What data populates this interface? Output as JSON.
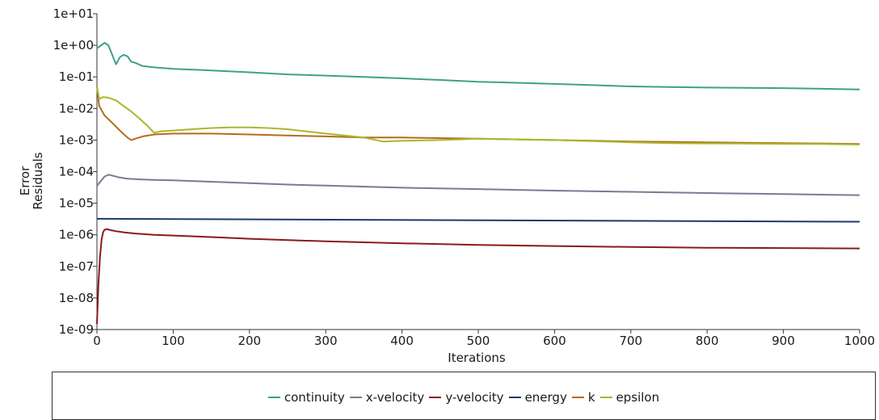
{
  "chart_data": {
    "type": "line",
    "title": "",
    "xlabel": "Iterations",
    "ylabel_lines": [
      "Error",
      "Residuals"
    ],
    "xlim": [
      0,
      1000
    ],
    "ylim": [
      1e-09,
      10
    ],
    "yscale": "log",
    "grid": false,
    "legend_position": "bottom",
    "x_ticks": [
      0,
      100,
      200,
      300,
      400,
      500,
      600,
      700,
      800,
      900,
      1000
    ],
    "x_tick_labels": [
      "0",
      "100",
      "200",
      "300",
      "400",
      "500",
      "600",
      "700",
      "800",
      "900",
      "1000"
    ],
    "y_tick_labels": [
      "1e+01",
      "1e+00",
      "1e-01",
      "1e-02",
      "1e-03",
      "1e-04",
      "1e-05",
      "1e-06",
      "1e-07",
      "1e-08",
      "1e-09"
    ],
    "series": [
      {
        "name": "continuity",
        "color": "#3fa08c",
        "x": [
          0,
          10,
          15,
          20,
          25,
          30,
          35,
          40,
          45,
          50,
          60,
          75,
          100,
          150,
          200,
          250,
          300,
          350,
          400,
          450,
          500,
          550,
          600,
          650,
          700,
          750,
          800,
          850,
          900,
          950,
          1000
        ],
        "y": [
          0.8,
          1.2,
          1.0,
          0.5,
          0.25,
          0.42,
          0.5,
          0.45,
          0.3,
          0.28,
          0.22,
          0.2,
          0.18,
          0.16,
          0.14,
          0.12,
          0.11,
          0.1,
          0.09,
          0.08,
          0.07,
          0.065,
          0.06,
          0.055,
          0.05,
          0.048,
          0.046,
          0.045,
          0.044,
          0.042,
          0.04
        ]
      },
      {
        "name": "x-velocity",
        "color": "#7a7a92",
        "x": [
          0,
          5,
          10,
          15,
          20,
          30,
          40,
          50,
          60,
          75,
          100,
          150,
          200,
          250,
          300,
          400,
          500,
          600,
          700,
          800,
          900,
          1000
        ],
        "y": [
          3.5e-05,
          5e-05,
          7e-05,
          8e-05,
          7.5e-05,
          6.5e-05,
          6e-05,
          5.8e-05,
          5.6e-05,
          5.5e-05,
          5.3e-05,
          4.8e-05,
          4.3e-05,
          3.9e-05,
          3.6e-05,
          3.1e-05,
          2.8e-05,
          2.5e-05,
          2.3e-05,
          2.1e-05,
          1.95e-05,
          1.8e-05
        ]
      },
      {
        "name": "y-velocity",
        "color": "#8b1a1a",
        "x": [
          0,
          2,
          4,
          6,
          8,
          10,
          14,
          18,
          25,
          35,
          50,
          75,
          100,
          150,
          200,
          300,
          400,
          500,
          600,
          700,
          800,
          900,
          1000
        ],
        "y": [
          1.5e-09,
          3e-08,
          2e-07,
          7e-07,
          1.2e-06,
          1.45e-06,
          1.5e-06,
          1.4e-06,
          1.3e-06,
          1.2e-06,
          1.1e-06,
          1e-06,
          9.5e-07,
          8.5e-07,
          7.5e-07,
          6.2e-07,
          5.4e-07,
          4.8e-07,
          4.4e-07,
          4.1e-07,
          3.9e-07,
          3.8e-07,
          3.7e-07
        ]
      },
      {
        "name": "energy",
        "color": "#1c3a6e",
        "x": [
          0,
          1000
        ],
        "y": [
          3.2e-06,
          2.6e-06
        ]
      },
      {
        "name": "k",
        "color": "#b86a1c",
        "x": [
          0,
          3,
          10,
          20,
          30,
          40,
          45,
          50,
          60,
          75,
          100,
          150,
          200,
          250,
          300,
          350,
          400,
          450,
          500,
          550,
          600,
          650,
          700,
          750,
          800,
          850,
          900,
          950,
          1000
        ],
        "y": [
          0.05,
          0.012,
          0.006,
          0.0035,
          0.002,
          0.0012,
          0.001,
          0.0011,
          0.0013,
          0.0015,
          0.0016,
          0.0016,
          0.0015,
          0.0014,
          0.0013,
          0.0012,
          0.0012,
          0.00115,
          0.0011,
          0.00105,
          0.001,
          0.00095,
          0.0009,
          0.00088,
          0.00085,
          0.00082,
          0.0008,
          0.00078,
          0.00075
        ]
      },
      {
        "name": "epsilon",
        "color": "#a8b82a",
        "x": [
          0,
          3,
          8,
          15,
          25,
          35,
          45,
          55,
          65,
          75,
          85,
          100,
          125,
          150,
          175,
          200,
          225,
          250,
          300,
          350,
          375,
          400,
          450,
          500,
          550,
          600,
          650,
          700,
          750,
          800,
          850,
          900,
          950,
          1000
        ],
        "y": [
          0.05,
          0.02,
          0.023,
          0.022,
          0.018,
          0.012,
          0.008,
          0.005,
          0.003,
          0.0017,
          0.0019,
          0.002,
          0.0022,
          0.0024,
          0.0025,
          0.0025,
          0.0024,
          0.0022,
          0.0016,
          0.0012,
          0.0009,
          0.00095,
          0.001,
          0.0011,
          0.00105,
          0.001,
          0.00092,
          0.00085,
          0.0008,
          0.00078,
          0.00077,
          0.00076,
          0.00075,
          0.00072
        ]
      }
    ]
  }
}
